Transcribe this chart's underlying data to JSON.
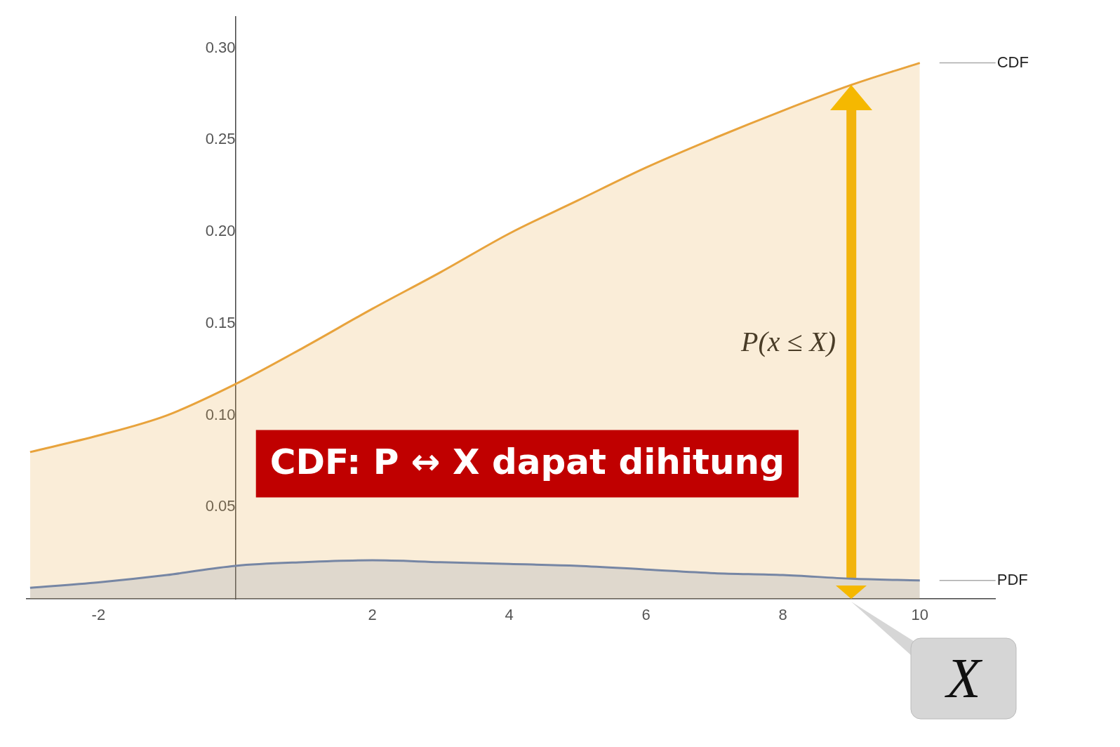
{
  "chart_data": {
    "type": "area",
    "x": [
      -3,
      -2,
      -1,
      0,
      1,
      2,
      3,
      4,
      5,
      6,
      7,
      8,
      9,
      10
    ],
    "series": [
      {
        "name": "CDF",
        "color": "#e8a33c",
        "values": [
          0.08,
          0.089,
          0.1,
          0.117,
          0.137,
          0.158,
          0.178,
          0.199,
          0.217,
          0.235,
          0.251,
          0.266,
          0.28,
          0.292
        ]
      },
      {
        "name": "PDF",
        "color": "#5b7fbf",
        "values": [
          0.006,
          0.009,
          0.013,
          0.018,
          0.02,
          0.021,
          0.02,
          0.019,
          0.018,
          0.016,
          0.014,
          0.013,
          0.011,
          0.01
        ]
      }
    ],
    "xlim": [
      -3.05,
      11.1
    ],
    "ylim": [
      0,
      0.317
    ],
    "xticks": [
      -2,
      2,
      4,
      6,
      8,
      10
    ],
    "yticks": [
      {
        "value": 0.05,
        "label": "0.05"
      },
      {
        "value": 0.1,
        "label": "0.10"
      },
      {
        "value": 0.15,
        "label": "0.15"
      },
      {
        "value": 0.2,
        "label": "0.20"
      },
      {
        "value": 0.25,
        "label": "0.25"
      },
      {
        "value": 0.3,
        "label": "0.30"
      }
    ],
    "grid": false,
    "legend": false,
    "ref_lines": [
      {
        "axis": "x",
        "value": 9,
        "label": "P(x ≤ X)",
        "color": "#f5b800"
      }
    ],
    "annotations": [
      "CDF: P ↔ X dapat dihitung",
      {
        "text": "X",
        "x": 9,
        "y": 0
      }
    ]
  }
}
